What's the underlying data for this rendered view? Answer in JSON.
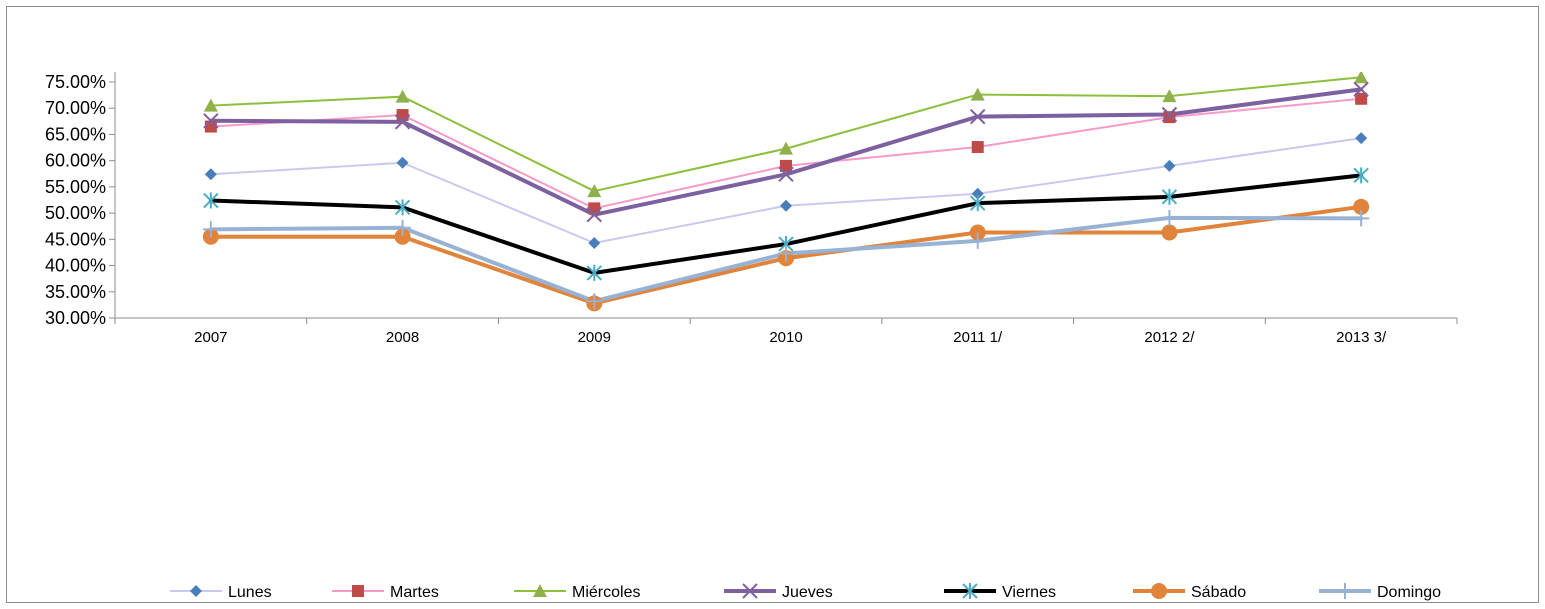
{
  "chart_data": {
    "type": "line",
    "title": "",
    "xlabel": "",
    "ylabel": "",
    "categories": [
      "2007",
      "2008",
      "2009",
      "2010",
      "2011 1/",
      "2012 2/",
      "2013 3/"
    ],
    "y_ticks": [
      "30.00%",
      "35.00%",
      "40.00%",
      "45.00%",
      "50.00%",
      "55.00%",
      "60.00%",
      "65.00%",
      "70.00%",
      "75.00%"
    ],
    "ylim": [
      30,
      75
    ],
    "y_unit": "percent",
    "grid": false,
    "legend_position": "bottom",
    "series": [
      {
        "name": "Lunes",
        "color": "#c9c8ee",
        "marker": "diamond",
        "marker_color": "#4a7ebb",
        "width": 2,
        "values": [
          57.4,
          59.6,
          44.3,
          51.4,
          53.7,
          59.0,
          64.3
        ]
      },
      {
        "name": "Martes",
        "color": "#f79ac8",
        "marker": "square",
        "marker_color": "#be4b48",
        "width": 2,
        "values": [
          66.5,
          68.7,
          50.9,
          59.0,
          62.6,
          68.3,
          71.8
        ]
      },
      {
        "name": "Miércoles",
        "color": "#8cbf3b",
        "marker": "triangle",
        "marker_color": "#8fb04a",
        "width": 2,
        "values": [
          70.5,
          72.2,
          54.2,
          62.3,
          72.6,
          72.3,
          75.9
        ]
      },
      {
        "name": "Jueves",
        "color": "#7d60a0",
        "marker": "x",
        "marker_color": "#7d60a0",
        "width": 4,
        "values": [
          67.6,
          67.4,
          49.7,
          57.4,
          68.4,
          68.8,
          73.6
        ]
      },
      {
        "name": "Viernes",
        "color": "#000000",
        "marker": "star",
        "marker_color": "#4bacc6",
        "width": 4,
        "values": [
          52.4,
          51.1,
          38.6,
          44.1,
          51.9,
          53.1,
          57.2
        ]
      },
      {
        "name": "Sábado",
        "color": "#e0833b",
        "marker": "circle",
        "marker_color": "#e0833b",
        "width": 4,
        "values": [
          45.5,
          45.5,
          32.8,
          41.4,
          46.3,
          46.3,
          51.2
        ]
      },
      {
        "name": "Domingo",
        "color": "#98b2d4",
        "marker": "plus",
        "marker_color": "#98b2d4",
        "width": 4,
        "values": [
          46.9,
          47.2,
          33.2,
          42.3,
          44.7,
          49.1,
          49.0
        ]
      }
    ]
  }
}
